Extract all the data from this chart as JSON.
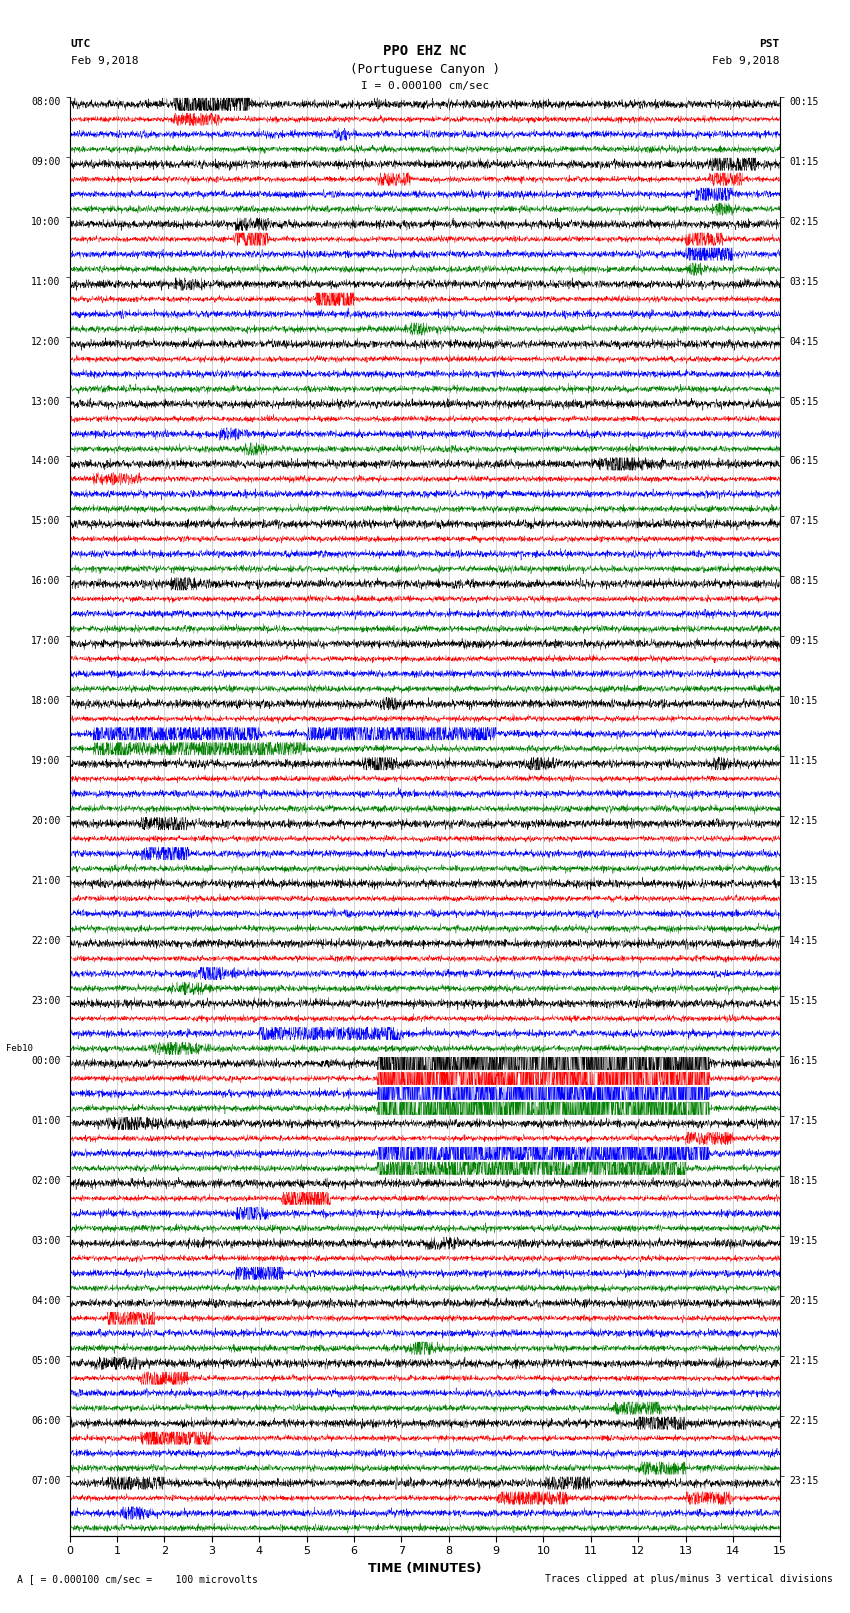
{
  "title_line1": "PPO EHZ NC",
  "title_line2": "(Portuguese Canyon )",
  "title_line3": "I = 0.000100 cm/sec",
  "left_header_line1": "UTC",
  "left_header_line2": "Feb 9,2018",
  "right_header_line1": "PST",
  "right_header_line2": "Feb 9,2018",
  "xlabel": "TIME (MINUTES)",
  "footer_left": "A [ = 0.000100 cm/sec =    100 microvolts",
  "footer_right": "Traces clipped at plus/minus 3 vertical divisions",
  "xlim": [
    0,
    15
  ],
  "xticks": [
    0,
    1,
    2,
    3,
    4,
    5,
    6,
    7,
    8,
    9,
    10,
    11,
    12,
    13,
    14,
    15
  ],
  "colors_cycle": [
    "black",
    "red",
    "blue",
    "green"
  ],
  "utc_labels_full": [
    "08:00",
    "09:00",
    "10:00",
    "11:00",
    "12:00",
    "13:00",
    "14:00",
    "15:00",
    "16:00",
    "17:00",
    "18:00",
    "19:00",
    "20:00",
    "21:00",
    "22:00",
    "23:00",
    "00:00",
    "01:00",
    "02:00",
    "03:00",
    "04:00",
    "05:00",
    "06:00",
    "07:00"
  ],
  "pst_labels_full": [
    "00:15",
    "01:15",
    "02:15",
    "03:15",
    "04:15",
    "05:15",
    "06:15",
    "07:15",
    "08:15",
    "09:15",
    "10:15",
    "11:15",
    "12:15",
    "13:15",
    "14:15",
    "15:15",
    "16:15",
    "17:15",
    "18:15",
    "19:15",
    "20:15",
    "21:15",
    "22:15",
    "23:15"
  ],
  "bg_color": "white",
  "trace_linewidth": 0.3,
  "num_hours": 24,
  "traces_per_hour": 4,
  "noise_black": 0.12,
  "noise_red": 0.08,
  "noise_blue": 0.1,
  "noise_green": 0.09,
  "clip_amp": 0.42
}
